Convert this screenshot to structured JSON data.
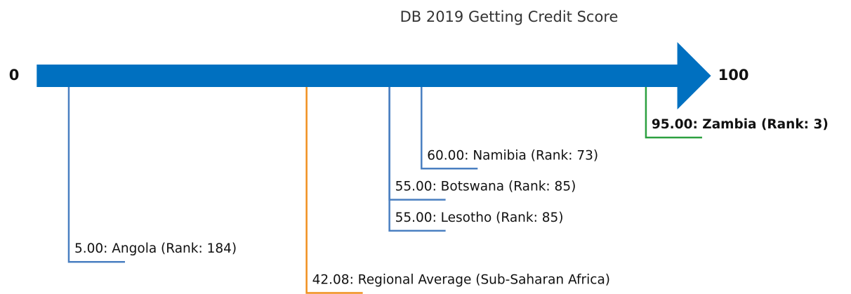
{
  "chart_data": {
    "type": "number_line",
    "title": "DB 2019 Getting Credit Score",
    "xlim": [
      0,
      100
    ],
    "xticks": [
      0,
      100
    ],
    "axis_color": "#0070c0",
    "items": [
      {
        "value": 95,
        "label": "95.00: Zambia (Rank: 3)",
        "color": "#2ca040",
        "bold": true
      },
      {
        "value": 60,
        "label": "60.00: Namibia (Rank: 73)",
        "color": "#4a7fc1",
        "bold": false
      },
      {
        "value": 55,
        "label": "55.00: Botswana (Rank: 85)",
        "color": "#4a7fc1",
        "bold": false
      },
      {
        "value": 55,
        "label": "55.00: Lesotho (Rank: 85)",
        "color": "#4a7fc1",
        "bold": false
      },
      {
        "value": 5,
        "label": "5.00: Angola (Rank: 184)",
        "color": "#4a7fc1",
        "bold": false
      },
      {
        "value": 42.08,
        "label": "42.08: Regional Average (Sub-Saharan Africa)",
        "color": "#f0901e",
        "bold": false
      }
    ]
  }
}
